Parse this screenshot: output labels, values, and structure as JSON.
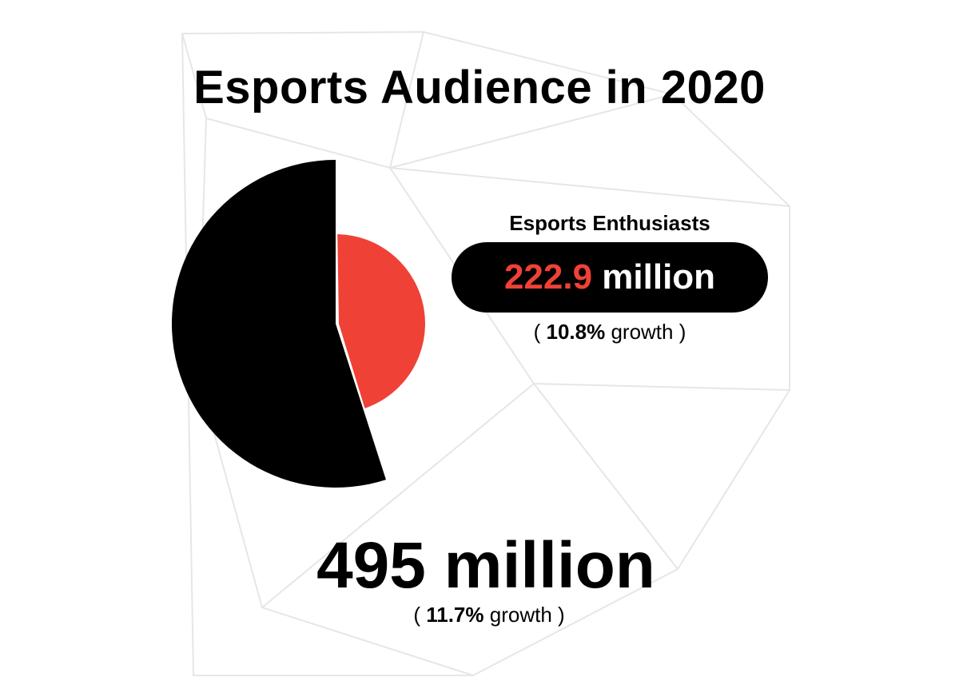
{
  "colors": {
    "accent": "#ef4136",
    "dark": "#000000",
    "background": "#ffffff",
    "watermark_lines": "#e6e6e6"
  },
  "chart_data": {
    "type": "pie",
    "title": "Esports Audience in 2020",
    "total": {
      "value": 495,
      "unit": "million",
      "label": "495 million",
      "growth_value": "11.7%",
      "growth_word": "growth"
    },
    "slices": [
      {
        "name": "Esports Enthusiasts",
        "value": 222.9,
        "value_text": "222.9",
        "unit": "million",
        "growth_value": "10.8%",
        "growth_word": "growth",
        "color": "#ef4136",
        "exploded_inner": true
      },
      {
        "name": "",
        "value": 272.1,
        "color": "#000000"
      }
    ]
  }
}
